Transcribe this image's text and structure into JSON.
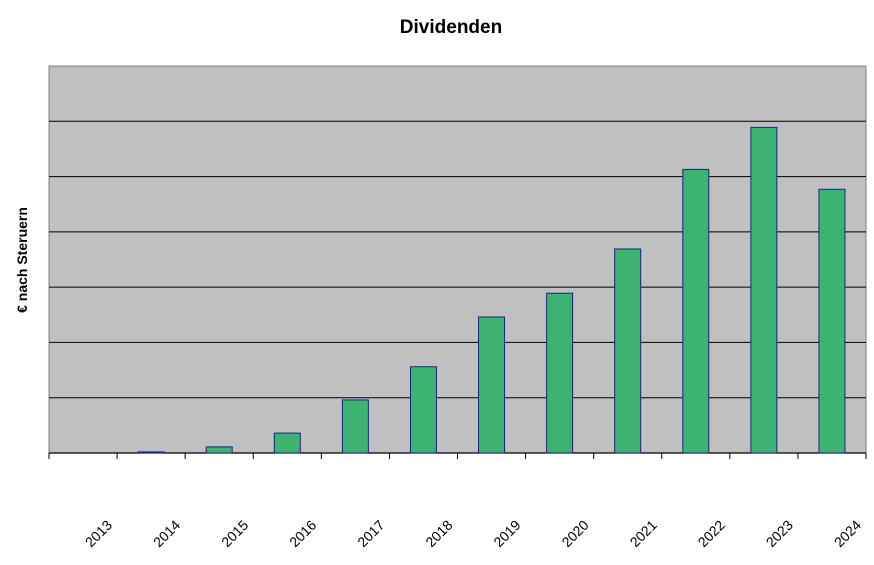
{
  "chart_data": {
    "type": "bar",
    "title": "Dividenden",
    "xlabel": "",
    "ylabel": "€ nach Steruern",
    "ylim": [
      0,
      7
    ],
    "y_units_note": "gridline units (no tick labels shown)",
    "grid": true,
    "legend": "none",
    "categories": [
      "2013",
      "2014",
      "2015",
      "2016",
      "2017",
      "2018",
      "2019",
      "2020",
      "2021",
      "2022",
      "2023",
      "2024"
    ],
    "values": [
      0,
      0.02,
      0.11,
      0.36,
      0.96,
      1.56,
      2.46,
      2.89,
      3.69,
      5.13,
      5.89,
      4.77
    ],
    "colors": {
      "bar": "#3cb371",
      "bar_border": "#1a237e",
      "plot_bg": "#c0c0c0"
    }
  }
}
